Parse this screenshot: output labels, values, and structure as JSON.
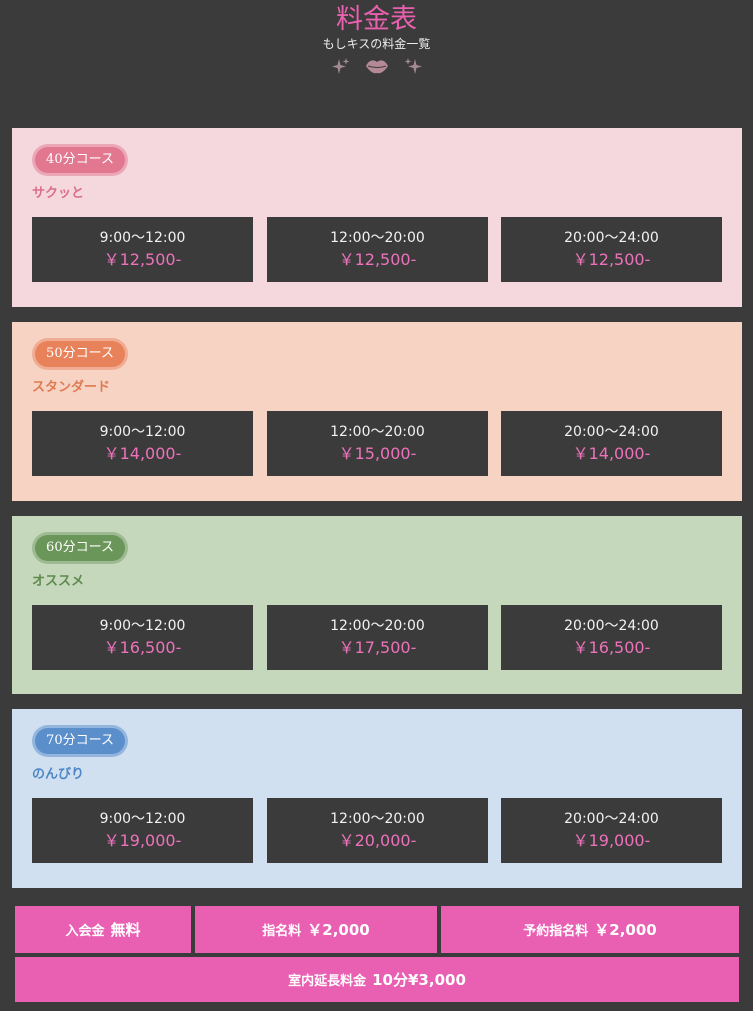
{
  "header": {
    "title": "料金表",
    "subtitle": "もしキスの料金一覧",
    "decor_icons": [
      "sparkle-icon",
      "lips-icon",
      "sparkle-icon"
    ]
  },
  "colors": {
    "background": "#3c3b3b",
    "accent_pink": "#e960b3",
    "price_pink": "#ec72bb"
  },
  "courses": [
    {
      "badge": "40分コース",
      "tagline": "サクッと",
      "theme": {
        "card": "#f5d7de",
        "badge": "#e27890",
        "text": "#d96f8a"
      },
      "slots": [
        {
          "time": "9:00〜12:00",
          "price": "￥12,500-"
        },
        {
          "time": "12:00〜20:00",
          "price": "￥12,500-"
        },
        {
          "time": "20:00〜24:00",
          "price": "￥12,500-"
        }
      ]
    },
    {
      "badge": "50分コース",
      "tagline": "スタンダード",
      "theme": {
        "card": "#f6d3c3",
        "badge": "#e8825a",
        "text": "#e07a52"
      },
      "slots": [
        {
          "time": "9:00〜12:00",
          "price": "￥14,000-"
        },
        {
          "time": "12:00〜20:00",
          "price": "￥15,000-"
        },
        {
          "time": "20:00〜24:00",
          "price": "￥14,000-"
        }
      ]
    },
    {
      "badge": "60分コース",
      "tagline": "オススメ",
      "theme": {
        "card": "#c5d8bb",
        "badge": "#6b9659",
        "text": "#5f8a4f"
      },
      "slots": [
        {
          "time": "9:00〜12:00",
          "price": "￥16,500-"
        },
        {
          "time": "12:00〜20:00",
          "price": "￥17,500-"
        },
        {
          "time": "20:00〜24:00",
          "price": "￥16,500-"
        }
      ]
    },
    {
      "badge": "70分コース",
      "tagline": "のんびり",
      "theme": {
        "card": "#d0e0f0",
        "badge": "#5b8fcc",
        "text": "#4e86c6"
      },
      "slots": [
        {
          "time": "9:00〜12:00",
          "price": "￥19,000-"
        },
        {
          "time": "12:00〜20:00",
          "price": "￥20,000-"
        },
        {
          "time": "20:00〜24:00",
          "price": "￥19,000-"
        }
      ]
    }
  ],
  "fees": [
    {
      "label": "入会金",
      "value": "無料"
    },
    {
      "label": "指名料",
      "value": "￥2,000"
    },
    {
      "label": "予約指名料",
      "value": "￥2,000"
    },
    {
      "label": "室内延長料金",
      "value": "10分¥3,000"
    }
  ]
}
